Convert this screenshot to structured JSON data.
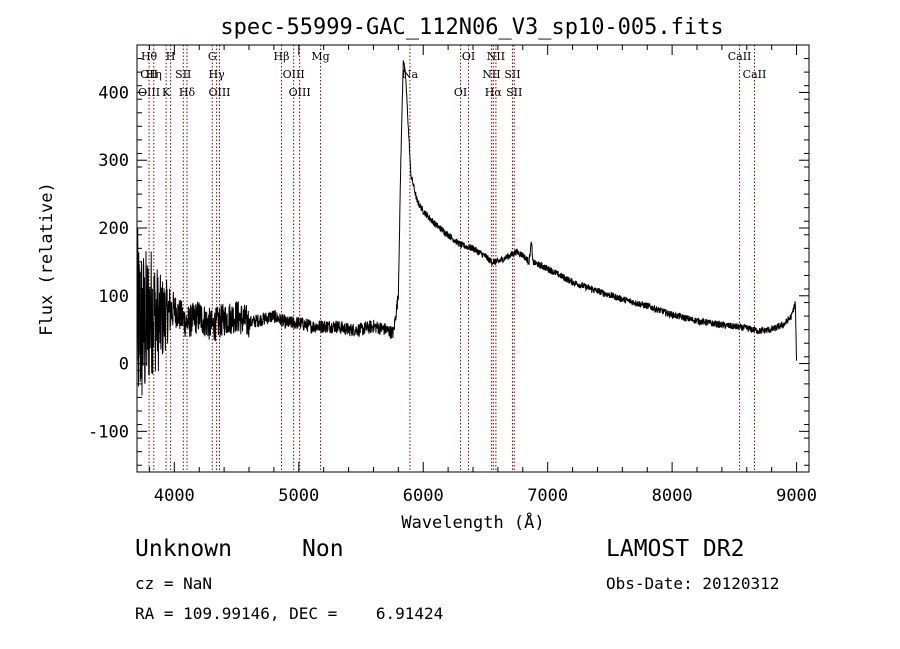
{
  "chart_data": {
    "type": "line",
    "title": "spec-55999-GAC_112N06_V3_sp10-005.fits",
    "xlabel": "Wavelength (Å)",
    "ylabel": "Flux (relative)",
    "xlim": [
      3700,
      9100
    ],
    "ylim": [
      -160,
      470
    ],
    "xticks": [
      4000,
      5000,
      6000,
      7000,
      8000,
      9000
    ],
    "yticks": [
      -100,
      0,
      100,
      200,
      300,
      400
    ],
    "series": [
      {
        "x": [
          3700,
          3760,
          3820,
          3880,
          3940,
          4000,
          4100,
          4200,
          4300,
          4400,
          4500,
          4600,
          4700,
          4800,
          4900,
          5000,
          5100,
          5200,
          5300,
          5400,
          5500,
          5600,
          5700,
          5760,
          5800,
          5820,
          5840,
          5860,
          5880,
          5900,
          5950,
          6000,
          6100,
          6200,
          6300,
          6400,
          6500,
          6550,
          6600,
          6700,
          6750,
          6800,
          6850,
          6870,
          6880,
          6900,
          7000,
          7200,
          7400,
          7600,
          7800,
          8000,
          8200,
          8400,
          8600,
          8700,
          8800,
          8900,
          8960,
          8990,
          9000
        ],
        "y": [
          60,
          50,
          80,
          60,
          75,
          80,
          60,
          70,
          55,
          65,
          70,
          60,
          65,
          70,
          60,
          60,
          55,
          55,
          55,
          50,
          50,
          55,
          50,
          45,
          100,
          300,
          450,
          420,
          350,
          280,
          240,
          225,
          205,
          190,
          175,
          170,
          158,
          150,
          150,
          160,
          165,
          160,
          150,
          180,
          150,
          148,
          140,
          120,
          107,
          95,
          85,
          72,
          63,
          57,
          52,
          48,
          50,
          58,
          70,
          90,
          0
        ]
      }
    ],
    "noise_region": {
      "x_start": 3700,
      "x_end": 4000,
      "amplitude": 120
    },
    "grid": false,
    "legend": "none",
    "line_markers": {
      "color": "#8b0000",
      "lines": [
        {
          "wavelength": 3797,
          "labels": [
            "Hθ",
            "OII",
            "OIII"
          ]
        },
        {
          "wavelength": 3835,
          "labels": [
            "Hη"
          ]
        },
        {
          "wavelength": 3934,
          "labels": [
            "K"
          ]
        },
        {
          "wavelength": 3970,
          "labels": [
            "H"
          ]
        },
        {
          "wavelength": 4072,
          "labels": [
            "SII"
          ]
        },
        {
          "wavelength": 4102,
          "labels": [
            "Hδ"
          ]
        },
        {
          "wavelength": 4305,
          "labels": [
            "G"
          ]
        },
        {
          "wavelength": 4340,
          "labels": [
            "Hγ"
          ]
        },
        {
          "wavelength": 4363,
          "labels": [
            "OIII"
          ]
        },
        {
          "wavelength": 4861,
          "labels": [
            "Hβ"
          ]
        },
        {
          "wavelength": 4959,
          "labels": [
            "OIII"
          ]
        },
        {
          "wavelength": 5007,
          "labels": [
            "OIII"
          ]
        },
        {
          "wavelength": 5175,
          "labels": [
            "Mg"
          ]
        },
        {
          "wavelength": 5893,
          "labels": [
            "Na"
          ]
        },
        {
          "wavelength": 6300,
          "labels": [
            "OI"
          ]
        },
        {
          "wavelength": 6364,
          "labels": [
            "OI"
          ]
        },
        {
          "wavelength": 6548,
          "labels": [
            "NII"
          ]
        },
        {
          "wavelength": 6563,
          "labels": [
            "Hα"
          ]
        },
        {
          "wavelength": 6584,
          "labels": [
            "NII"
          ]
        },
        {
          "wavelength": 6717,
          "labels": [
            "SII"
          ]
        },
        {
          "wavelength": 6731,
          "labels": [
            "SII"
          ]
        },
        {
          "wavelength": 8542,
          "labels": [
            "CaII"
          ]
        },
        {
          "wavelength": 8662,
          "labels": [
            "CaII"
          ]
        }
      ]
    }
  },
  "info": {
    "class": "Unknown",
    "subclass": "Non",
    "survey": "LAMOST DR2",
    "cz": "cz = NaN",
    "obs_date": "Obs-Date: 20120312",
    "radec": "RA = 109.99146, DEC =    6.91424"
  }
}
